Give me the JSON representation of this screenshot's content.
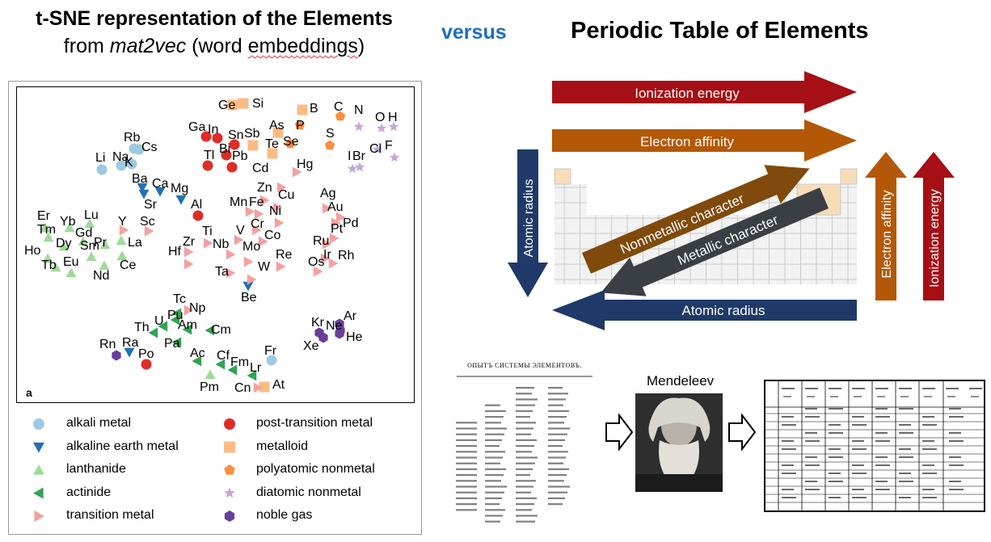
{
  "title_left": {
    "line1": "t-SNE representation of the Elements",
    "line2_prefix": "from ",
    "line2_italic": "mat2vec",
    "line2_suffix_a": " (word ",
    "line2_suffix_b": "embeddings",
    "line2_suffix_c": ")"
  },
  "versus": "versus",
  "title_right": "Periodic Table of Elements",
  "panel_letter": "a",
  "colors": {
    "alkali": "#9ecae1",
    "alkaline": "#2171b5",
    "lanthanide": "#a1d99b",
    "actinide": "#31a354",
    "transition": "#f4a0a0",
    "post_transition": "#de2d26",
    "metalloid": "#fdbb84",
    "polyatomic": "#fd8d3c",
    "diatomic": "#c5a8d6",
    "noble": "#6a3d9a",
    "arrow_red": "#a50f15",
    "arrow_orange": "#b35806",
    "arrow_navy": "#1f3a68",
    "arrow_brown": "#7f4a0b",
    "arrow_gray": "#3a3f44"
  },
  "elements": [
    {
      "s": "Ge",
      "g": "metalloid"
    },
    {
      "s": "Si",
      "g": "metalloid"
    },
    {
      "s": "B",
      "g": "metalloid"
    },
    {
      "s": "C",
      "g": "polyatomic"
    },
    {
      "s": "N",
      "g": "diatomic"
    },
    {
      "s": "O",
      "g": "diatomic"
    },
    {
      "s": "H",
      "g": "diatomic"
    },
    {
      "s": "Rb",
      "g": "alkali"
    },
    {
      "s": "Cs",
      "g": "alkali"
    },
    {
      "s": "Na",
      "g": "alkali"
    },
    {
      "s": "K",
      "g": "alkali"
    },
    {
      "s": "Li",
      "g": "alkali"
    },
    {
      "s": "Ga",
      "g": "post_transition"
    },
    {
      "s": "In",
      "g": "post_transition"
    },
    {
      "s": "Tl",
      "g": "post_transition"
    },
    {
      "s": "Bi",
      "g": "post_transition"
    },
    {
      "s": "Pb",
      "g": "post_transition"
    },
    {
      "s": "Sn",
      "g": "post_transition"
    },
    {
      "s": "Al",
      "g": "post_transition"
    },
    {
      "s": "Po",
      "g": "post_transition"
    },
    {
      "s": "Sb",
      "g": "metalloid"
    },
    {
      "s": "As",
      "g": "metalloid"
    },
    {
      "s": "Te",
      "g": "metalloid"
    },
    {
      "s": "At",
      "g": "metalloid"
    },
    {
      "s": "P",
      "g": "polyatomic"
    },
    {
      "s": "S",
      "g": "polyatomic"
    },
    {
      "s": "Se",
      "g": "polyatomic"
    },
    {
      "s": "Cl",
      "g": "diatomic"
    },
    {
      "s": "F",
      "g": "diatomic"
    },
    {
      "s": "I",
      "g": "diatomic"
    },
    {
      "s": "Br",
      "g": "diatomic"
    },
    {
      "s": "Ba",
      "g": "alkaline"
    },
    {
      "s": "Ca",
      "g": "alkaline"
    },
    {
      "s": "Mg",
      "g": "alkaline"
    },
    {
      "s": "Sr",
      "g": "alkaline"
    },
    {
      "s": "Be",
      "g": "alkaline"
    },
    {
      "s": "Ra",
      "g": "alkaline"
    },
    {
      "s": "Er",
      "g": "lanthanide"
    },
    {
      "s": "Yb",
      "g": "lanthanide"
    },
    {
      "s": "Lu",
      "g": "lanthanide"
    },
    {
      "s": "Tm",
      "g": "lanthanide"
    },
    {
      "s": "Gd",
      "g": "lanthanide"
    },
    {
      "s": "Dy",
      "g": "lanthanide"
    },
    {
      "s": "Pr",
      "g": "lanthanide"
    },
    {
      "s": "Sm",
      "g": "lanthanide"
    },
    {
      "s": "La",
      "g": "lanthanide"
    },
    {
      "s": "Ho",
      "g": "lanthanide"
    },
    {
      "s": "Tb",
      "g": "lanthanide"
    },
    {
      "s": "Eu",
      "g": "lanthanide"
    },
    {
      "s": "Nd",
      "g": "lanthanide"
    },
    {
      "s": "Ce",
      "g": "lanthanide"
    },
    {
      "s": "Pm",
      "g": "lanthanide"
    },
    {
      "s": "Zn",
      "g": "transition"
    },
    {
      "s": "Cd",
      "g": "transition"
    },
    {
      "s": "Hg",
      "g": "transition"
    },
    {
      "s": "Cu",
      "g": "transition"
    },
    {
      "s": "Ag",
      "g": "transition"
    },
    {
      "s": "Au",
      "g": "transition"
    },
    {
      "s": "Mn",
      "g": "transition"
    },
    {
      "s": "Fe",
      "g": "transition"
    },
    {
      "s": "Ni",
      "g": "transition"
    },
    {
      "s": "Cr",
      "g": "transition"
    },
    {
      "s": "Co",
      "g": "transition"
    },
    {
      "s": "Pd",
      "g": "transition"
    },
    {
      "s": "Pt",
      "g": "transition"
    },
    {
      "s": "Y",
      "g": "transition"
    },
    {
      "s": "Sc",
      "g": "transition"
    },
    {
      "s": "Ti",
      "g": "transition"
    },
    {
      "s": "V",
      "g": "transition"
    },
    {
      "s": "Zr",
      "g": "transition"
    },
    {
      "s": "Nb",
      "g": "transition"
    },
    {
      "s": "Mo",
      "g": "transition"
    },
    {
      "s": "Hf",
      "g": "transition"
    },
    {
      "s": "Ta",
      "g": "transition"
    },
    {
      "s": "W",
      "g": "transition"
    },
    {
      "s": "Re",
      "g": "transition"
    },
    {
      "s": "Ru",
      "g": "transition"
    },
    {
      "s": "Ir",
      "g": "transition"
    },
    {
      "s": "Rh",
      "g": "transition"
    },
    {
      "s": "Os",
      "g": "transition"
    },
    {
      "s": "Tc",
      "g": "transition"
    },
    {
      "s": "Np",
      "g": "actinide"
    },
    {
      "s": "Pu",
      "g": "actinide"
    },
    {
      "s": "U",
      "g": "actinide"
    },
    {
      "s": "Th",
      "g": "actinide"
    },
    {
      "s": "Am",
      "g": "actinide"
    },
    {
      "s": "Cm",
      "g": "actinide"
    },
    {
      "s": "Pa",
      "g": "actinide"
    },
    {
      "s": "Ac",
      "g": "actinide"
    },
    {
      "s": "Cf",
      "g": "actinide"
    },
    {
      "s": "Fm",
      "g": "actinide"
    },
    {
      "s": "Lr",
      "g": "actinide"
    },
    {
      "s": "Cn",
      "g": "transition"
    },
    {
      "s": "Fr",
      "g": "alkali"
    },
    {
      "s": "Rn",
      "g": "noble"
    },
    {
      "s": "Kr",
      "g": "noble"
    },
    {
      "s": "Ar",
      "g": "noble"
    },
    {
      "s": "Ne",
      "g": "noble"
    },
    {
      "s": "Xe",
      "g": "noble"
    },
    {
      "s": "He",
      "g": "noble"
    }
  ],
  "legend": [
    {
      "label": "alkali metal",
      "g": "alkali",
      "shape": "circle"
    },
    {
      "label": "alkaline earth metal",
      "g": "alkaline",
      "shape": "tri-down"
    },
    {
      "label": "lanthanide",
      "g": "lanthanide",
      "shape": "tri-up"
    },
    {
      "label": "actinide",
      "g": "actinide",
      "shape": "tri-left"
    },
    {
      "label": "transition metal",
      "g": "transition",
      "shape": "tri-right"
    },
    {
      "label": "post-transition metal",
      "g": "post_transition",
      "shape": "circle"
    },
    {
      "label": "metalloid",
      "g": "metalloid",
      "shape": "square"
    },
    {
      "label": "polyatomic nonmetal",
      "g": "polyatomic",
      "shape": "pentagon"
    },
    {
      "label": "diatomic nonmetal",
      "g": "diatomic",
      "shape": "star"
    },
    {
      "label": "noble gas",
      "g": "noble",
      "shape": "hexagon"
    }
  ],
  "arrows": {
    "ionization_energy": "Ionization energy",
    "electron_affinity": "Electron affinity",
    "atomic_radius": "Atomic radius",
    "nonmetallic": "Nonmetallic character",
    "metallic": "Metallic character"
  },
  "mendeleev_label": "Mendeleev",
  "mendeleev_table_heading": "ОПЫТЪ СИСТЕМЫ ЭЛЕМЕНТОВЪ."
}
